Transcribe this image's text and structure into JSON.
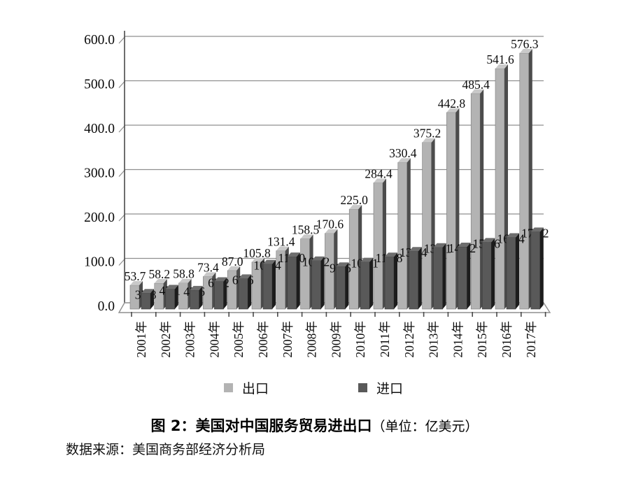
{
  "chart_data": {
    "type": "bar",
    "title": "图2：美国对中国服务贸易进出口",
    "unit": "亿美元",
    "categories": [
      "2001年",
      "2002年",
      "2003年",
      "2004年",
      "2005年",
      "2006年",
      "2007年",
      "2008年",
      "2009年",
      "2010年",
      "2011年",
      "2012年",
      "2013年",
      "2014年",
      "2015年",
      "2016年",
      "2017年"
    ],
    "series": [
      {
        "name": "出口",
        "color": "#b3b3b3",
        "side": "#4c4c4c",
        "top": "#c9c9c9",
        "edge": "#7a7a7a",
        "values": [
          53.7,
          58.2,
          58.8,
          73.4,
          87.0,
          105.8,
          131.4,
          158.5,
          170.6,
          225.0,
          284.4,
          330.4,
          375.2,
          442.8,
          485.4,
          541.6,
          576.3
        ]
      },
      {
        "name": "进口",
        "color": "#595959",
        "side": "#1c1c1c",
        "top": "#6e6e6e",
        "edge": "#3a3a3a",
        "values": [
          35.8,
          45.1,
          42.6,
          62.2,
          68.6,
          101.4,
          118.0,
          109.2,
          95.6,
          106.1,
          117.8,
          130.4,
          139.1,
          140.2,
          150.6,
          161.4,
          174.2
        ]
      }
    ],
    "y_axis": {
      "min": 0,
      "max": 600,
      "step": 100,
      "ticks": [
        "0.0",
        "100.0",
        "200.0",
        "300.0",
        "400.0",
        "500.0",
        "600.0"
      ]
    },
    "legend_position": "bottom",
    "grid": true
  },
  "caption": {
    "title": "图 2：美国对中国服务贸易进出口",
    "unit_note": "（单位：亿美元）"
  },
  "source_note": "数据来源：美国商务部经济分析局"
}
